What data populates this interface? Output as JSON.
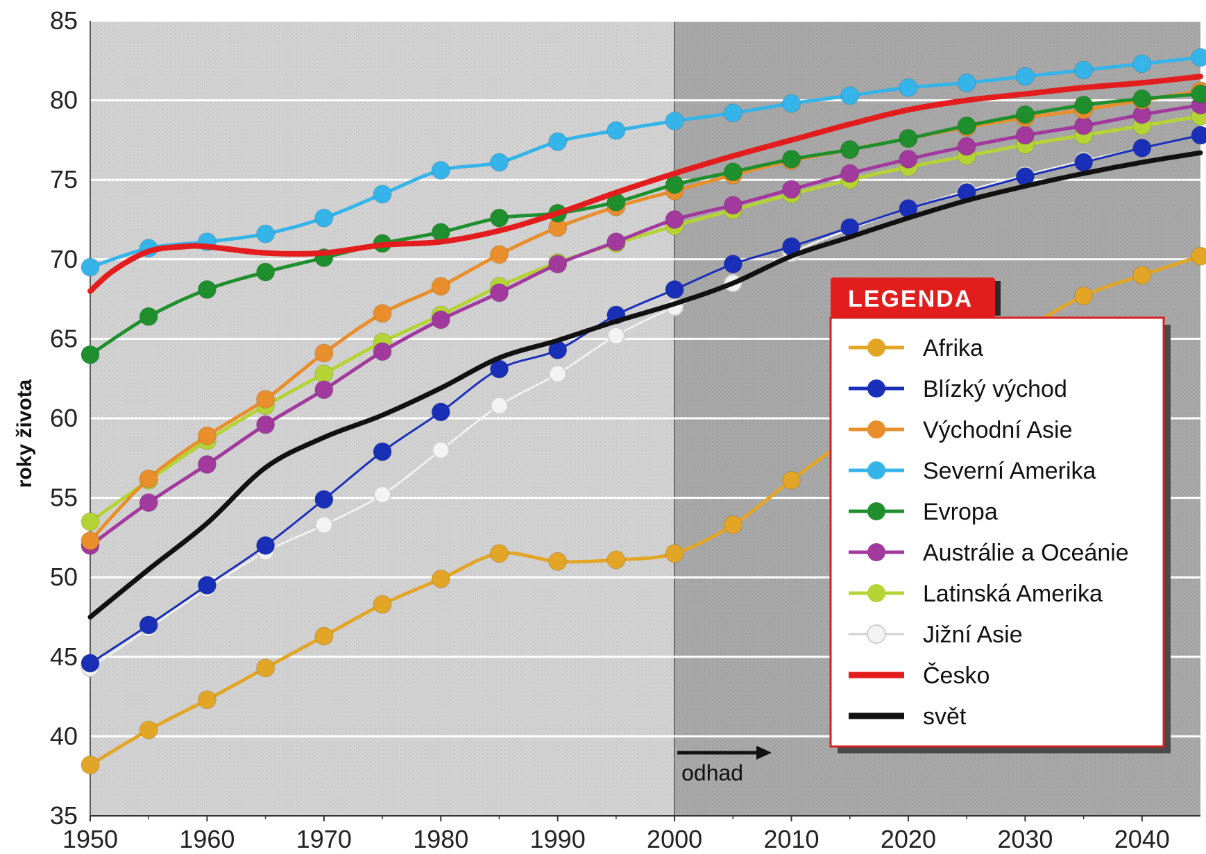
{
  "chart_data": {
    "type": "line",
    "xlabel": "",
    "ylabel": "roky života",
    "xlim": [
      1950,
      2045
    ],
    "ylim": [
      35,
      85
    ],
    "x_ticks": [
      1950,
      1960,
      1970,
      1980,
      1990,
      2000,
      2010,
      2020,
      2030,
      2040
    ],
    "y_ticks": [
      35,
      40,
      45,
      50,
      55,
      60,
      65,
      70,
      75,
      80,
      85
    ],
    "grid": true,
    "legend_title": "LEGENDA",
    "legend_position": "right",
    "annotation": "odhad",
    "estimate_start": 2000,
    "series": [
      {
        "name": "Afrika",
        "color": "#e3a526",
        "markers": true,
        "x": [
          1950,
          1955,
          1960,
          1965,
          1970,
          1975,
          1980,
          1985,
          1990,
          1995,
          2000,
          2005,
          2010,
          2015,
          2020,
          2025,
          2030,
          2035,
          2040,
          2045
        ],
        "y": [
          38.2,
          40.4,
          42.3,
          44.3,
          46.3,
          48.3,
          49.9,
          51.5,
          51.0,
          51.1,
          51.5,
          53.3,
          56.1,
          58.8,
          61.3,
          63.5,
          65.6,
          67.7,
          69.0,
          70.2
        ]
      },
      {
        "name": "Blízký východ",
        "color": "#1a2fb8",
        "markers": true,
        "x": [
          1950,
          1955,
          1960,
          1965,
          1970,
          1975,
          1980,
          1985,
          1990,
          1995,
          2000,
          2005,
          2010,
          2015,
          2020,
          2025,
          2030,
          2035,
          2040,
          2045
        ],
        "y": [
          44.6,
          47.0,
          49.5,
          52.0,
          54.9,
          57.9,
          60.4,
          63.1,
          64.3,
          66.5,
          68.1,
          69.7,
          70.8,
          72.0,
          73.2,
          74.2,
          75.2,
          76.1,
          77.0,
          77.8
        ]
      },
      {
        "name": "Východní Asie",
        "color": "#e88f2b",
        "markers": true,
        "x": [
          1950,
          1955,
          1960,
          1965,
          1970,
          1975,
          1980,
          1985,
          1990,
          1995,
          2000,
          2005,
          2010,
          2015,
          2020,
          2025,
          2030,
          2035,
          2040,
          2045
        ],
        "y": [
          52.3,
          56.2,
          58.9,
          61.2,
          64.1,
          66.6,
          68.3,
          70.3,
          72.0,
          73.3,
          74.3,
          75.3,
          76.2,
          76.9,
          77.6,
          78.3,
          78.9,
          79.4,
          80.0,
          80.6
        ]
      },
      {
        "name": "Severní Amerika",
        "color": "#35b4ea",
        "markers": true,
        "x": [
          1950,
          1955,
          1960,
          1965,
          1970,
          1975,
          1980,
          1985,
          1990,
          1995,
          2000,
          2005,
          2010,
          2015,
          2020,
          2025,
          2030,
          2035,
          2040,
          2045
        ],
        "y": [
          69.5,
          70.7,
          71.1,
          71.6,
          72.6,
          74.1,
          75.6,
          76.1,
          77.4,
          78.1,
          78.7,
          79.2,
          79.8,
          80.3,
          80.8,
          81.1,
          81.5,
          81.9,
          82.3,
          82.7
        ]
      },
      {
        "name": "Evropa",
        "color": "#1f8f2d",
        "markers": true,
        "x": [
          1950,
          1955,
          1960,
          1965,
          1970,
          1975,
          1980,
          1985,
          1990,
          1995,
          2000,
          2005,
          2010,
          2015,
          2020,
          2025,
          2030,
          2035,
          2040,
          2045
        ],
        "y": [
          64.0,
          66.4,
          68.1,
          69.2,
          70.1,
          71.0,
          71.7,
          72.6,
          72.9,
          73.6,
          74.7,
          75.5,
          76.3,
          76.9,
          77.6,
          78.4,
          79.1,
          79.7,
          80.1,
          80.4
        ]
      },
      {
        "name": "Austrálie a Oceánie",
        "color": "#a23a9d",
        "markers": true,
        "x": [
          1950,
          1955,
          1960,
          1965,
          1970,
          1975,
          1980,
          1985,
          1990,
          1995,
          2000,
          2005,
          2010,
          2015,
          2020,
          2025,
          2030,
          2035,
          2040,
          2045
        ],
        "y": [
          52.0,
          54.7,
          57.1,
          59.6,
          61.8,
          64.2,
          66.2,
          67.9,
          69.7,
          71.1,
          72.5,
          73.4,
          74.4,
          75.4,
          76.3,
          77.1,
          77.8,
          78.4,
          79.1,
          79.7
        ]
      },
      {
        "name": "Latinská Amerika",
        "color": "#b4d334",
        "markers": true,
        "x": [
          1950,
          1955,
          1960,
          1965,
          1970,
          1975,
          1980,
          1985,
          1990,
          1995,
          2000,
          2005,
          2010,
          2015,
          2020,
          2025,
          2030,
          2035,
          2040,
          2045
        ],
        "y": [
          53.5,
          56.1,
          58.6,
          60.8,
          62.8,
          64.8,
          66.5,
          68.3,
          69.8,
          71.0,
          72.1,
          73.1,
          74.1,
          75.0,
          75.8,
          76.5,
          77.2,
          77.8,
          78.4,
          79.0
        ]
      },
      {
        "name": "Jižní Asie",
        "color": "#e4e4e4",
        "markers": true,
        "x": [
          1950,
          1955,
          1960,
          1965,
          1970,
          1975,
          1980,
          1985,
          1990,
          1995,
          2000,
          2005,
          2010,
          2015,
          2020,
          2025,
          2030,
          2035,
          2040,
          2045
        ],
        "y": [
          44.3,
          46.8,
          49.3,
          51.6,
          53.3,
          55.2,
          58.0,
          60.8,
          62.8,
          65.2,
          67.0,
          68.5,
          70.4,
          71.9,
          73.2,
          74.3,
          75.3,
          76.2,
          77.0,
          77.8
        ]
      },
      {
        "name": "Česko",
        "color": "#e31d1d",
        "markers": false,
        "x": [
          1950,
          1952,
          1955,
          1958,
          1960,
          1965,
          1970,
          1975,
          1980,
          1985,
          1990,
          1995,
          2000,
          2005,
          2010,
          2015,
          2020,
          2025,
          2030,
          2035,
          2040,
          2045
        ],
        "y": [
          68.0,
          69.3,
          70.5,
          70.8,
          70.8,
          70.4,
          70.4,
          70.9,
          71.1,
          71.8,
          72.9,
          74.2,
          75.4,
          76.5,
          77.5,
          78.5,
          79.4,
          80.0,
          80.4,
          80.8,
          81.1,
          81.5
        ]
      },
      {
        "name": "svět",
        "color": "#111111",
        "markers": false,
        "x": [
          1950,
          1955,
          1960,
          1965,
          1970,
          1975,
          1980,
          1985,
          1990,
          1995,
          2000,
          2005,
          2010,
          2015,
          2020,
          2025,
          2030,
          2035,
          2040,
          2045
        ],
        "y": [
          47.5,
          50.5,
          53.4,
          56.9,
          58.8,
          60.2,
          61.9,
          63.8,
          64.9,
          66.1,
          67.2,
          68.5,
          70.2,
          71.4,
          72.6,
          73.7,
          74.6,
          75.4,
          76.1,
          76.7
        ]
      }
    ]
  }
}
